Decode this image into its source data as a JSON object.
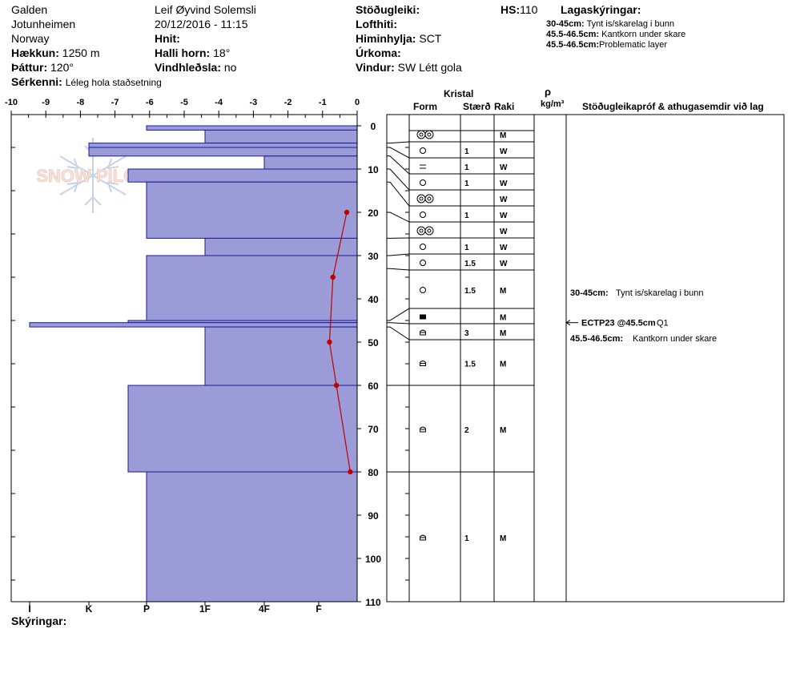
{
  "header": {
    "col1": [
      {
        "label": "",
        "value": "Galden"
      },
      {
        "label": "",
        "value": "Jotunheimen"
      },
      {
        "label": "",
        "value": "Norway"
      },
      {
        "label": "Hækkun:",
        "value": "1250 m"
      },
      {
        "label": "Þáttur:",
        "value": "120°"
      }
    ],
    "serkenni_label": "Sérkenni:",
    "serkenni_value": "Léleg hola staðsetning",
    "col2": [
      {
        "label": "",
        "value": "Leif Øyvind Solemsli"
      },
      {
        "label": "",
        "value": "20/12/2016 - 11:15"
      },
      {
        "label": "Hnit:",
        "value": ""
      },
      {
        "label": "Halli horn:",
        "value": "18°"
      },
      {
        "label": "Vindhleðsla:",
        "value": "no"
      }
    ],
    "col3": [
      {
        "label": "Stöðugleiki:",
        "value": ""
      },
      {
        "label": "Lofthiti:",
        "value": ""
      },
      {
        "label": "Himinhylja:",
        "value": "SCT"
      },
      {
        "label": "Úrkoma:",
        "value": ""
      },
      {
        "label": "Vindur:",
        "value": "SW Létt gola"
      }
    ],
    "hs_label": "HS:",
    "hs_value": "110",
    "legend_title": "Lagaskýringar:",
    "legend": [
      {
        "range": "30-45cm:",
        "text": "Tynt is/skarelag i bunn"
      },
      {
        "range": "45.5-46.5cm:",
        "text": "Kantkorn under skare"
      },
      {
        "range": "45.5-46.5cm:",
        "text": "Problematic layer"
      }
    ]
  },
  "watermark": "SNOW PILOT",
  "table_headers": {
    "kristal": "Kristal",
    "form": "Form",
    "size": "Stærð",
    "raki": "Raki",
    "rho": "ρ",
    "rho_unit": "kg/m³",
    "comments": "Stöðugleikapróf & athugasemdir við lag"
  },
  "footer": {
    "label": "Skýringar:"
  },
  "chart_data": {
    "type": "snow-profile",
    "temp_axis": {
      "min": -10,
      "max": 0,
      "ticks": [
        "-10",
        "-9",
        "-8",
        "-7",
        "-6",
        "-5",
        "-4",
        "-3",
        "-2",
        "-1",
        "0"
      ]
    },
    "depth_axis": {
      "min": 0,
      "max": 110,
      "ticks": [
        "0",
        "10",
        "20",
        "30",
        "40",
        "50",
        "60",
        "70",
        "80",
        "90",
        "100",
        "110"
      ]
    },
    "hardness_labels": [
      "I",
      "K",
      "P",
      "1F",
      "4F",
      "F"
    ],
    "hardness_layers": [
      {
        "from": 0,
        "to": 1,
        "hardness": "P"
      },
      {
        "from": 1,
        "to": 4,
        "hardness": "1F"
      },
      {
        "from": 4,
        "to": 5,
        "hardness": "K"
      },
      {
        "from": 5,
        "to": 7,
        "hardness": "K"
      },
      {
        "from": 7,
        "to": 10,
        "hardness": "4F"
      },
      {
        "from": 10,
        "to": 13,
        "hardness": "P-"
      },
      {
        "from": 13,
        "to": 26,
        "hardness": "P"
      },
      {
        "from": 26,
        "to": 30,
        "hardness": "1F"
      },
      {
        "from": 30,
        "to": 45,
        "hardness": "P"
      },
      {
        "from": 45,
        "to": 45.5,
        "hardness": "P-"
      },
      {
        "from": 45.5,
        "to": 46.5,
        "hardness": "I"
      },
      {
        "from": 46.5,
        "to": 60,
        "hardness": "1F"
      },
      {
        "from": 60,
        "to": 80,
        "hardness": "P-"
      },
      {
        "from": 80,
        "to": 110,
        "hardness": "P"
      }
    ],
    "temperature": [
      {
        "depth": 20,
        "temp": -0.3
      },
      {
        "depth": 35,
        "temp": -0.7
      },
      {
        "depth": 50,
        "temp": -0.8
      },
      {
        "depth": 60,
        "temp": -0.6
      },
      {
        "depth": 80,
        "temp": -0.2
      }
    ],
    "layers": [
      {
        "from": 0,
        "to": 1,
        "form": "",
        "size": "",
        "raki": ""
      },
      {
        "from": 1,
        "to": 4,
        "form": "rounded-grains",
        "size": "",
        "raki": "M"
      },
      {
        "from": 4,
        "to": 5,
        "form": "rounded",
        "size": "1",
        "raki": "W"
      },
      {
        "from": 5,
        "to": 7,
        "form": "surface-hoar",
        "size": "1",
        "raki": "W"
      },
      {
        "from": 7,
        "to": 10,
        "form": "rounded",
        "size": "1",
        "raki": "W"
      },
      {
        "from": 10,
        "to": 13,
        "form": "rounded-grains",
        "size": "",
        "raki": "W"
      },
      {
        "from": 13,
        "to": 20,
        "form": "rounded",
        "size": "1",
        "raki": "W"
      },
      {
        "from": 20,
        "to": 26,
        "form": "rounded-grains",
        "size": "",
        "raki": "W"
      },
      {
        "from": 26,
        "to": 30,
        "form": "rounded",
        "size": "1",
        "raki": "W"
      },
      {
        "from": 30,
        "to": 33,
        "form": "rounded",
        "size": "1.5",
        "raki": "W"
      },
      {
        "from": 33,
        "to": 45,
        "form": "rounded",
        "size": "1.5",
        "raki": "M"
      },
      {
        "from": 45,
        "to": 45.5,
        "form": "ice",
        "size": "",
        "raki": "M"
      },
      {
        "from": 45.5,
        "to": 46.5,
        "form": "faceted",
        "size": "3",
        "raki": "M"
      },
      {
        "from": 46.5,
        "to": 60,
        "form": "faceted",
        "size": "1.5",
        "raki": "M"
      },
      {
        "from": 60,
        "to": 80,
        "form": "faceted",
        "size": "2",
        "raki": "M"
      },
      {
        "from": 80,
        "to": 110,
        "form": "faceted",
        "size": "1",
        "raki": "M"
      }
    ],
    "comments": [
      {
        "label": "30-45cm:",
        "text": "Tynt is/skarelag i bunn"
      },
      {
        "label": "45.5-46.5cm:",
        "text": "Kantkorn under skare"
      }
    ],
    "test": {
      "label": "ECTP23 @45.5cm",
      "quality": "Q1",
      "depth": 45.5
    }
  }
}
